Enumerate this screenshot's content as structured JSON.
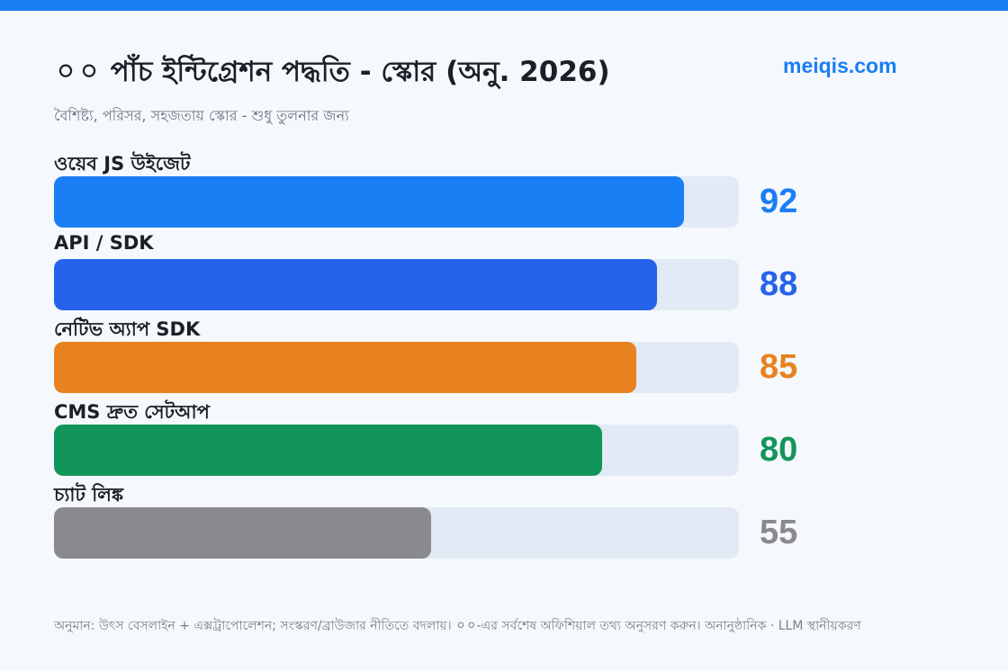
{
  "header": {
    "title": "⚪⚪ পাঁচ ইন্টিগ্রেশন পদ্ধতি - স্কোর (অনু. 2026)",
    "brand": "meiqis.com",
    "subtitle": "বৈশিষ্ট্য, পরিসর, সহজতায় স্কোর - শুধু তুলনার জন্য"
  },
  "chart_data": {
    "type": "bar",
    "orientation": "horizontal",
    "title": "⚪⚪ পাঁচ ইন্টিগ্রেশন পদ্ধতি - স্কোর (অনু. 2026)",
    "subtitle": "বৈশিষ্ট্য, পরিসর, সহজতায় স্কোর - শুধু তুলনার জন্য",
    "categories": [
      "ওয়েব JS উইজেট",
      "API / SDK",
      "নেটিভ অ্যাপ SDK",
      "CMS দ্রুত সেটআপ",
      "চ্যাট লিঙ্ক"
    ],
    "values": [
      92,
      88,
      85,
      80,
      55
    ],
    "colors": [
      "#1a7ef5",
      "#2563eb",
      "#e8821e",
      "#12955a",
      "#8a8a8e"
    ],
    "xlim": [
      0,
      100
    ],
    "grid": false,
    "legend": "none"
  },
  "footnote": "অনুমান: উৎস বেসলাইন + এক্সট্রাপোলেশন; সংস্করণ/ব্রাউজার নীতিতে বদলায়। ⚪⚪-এর সর্বশেষ অফিশিয়াল তথ্য অনুসরণ করুন। অনানুষ্ঠানিক · LLM স্থানীয়করণ"
}
